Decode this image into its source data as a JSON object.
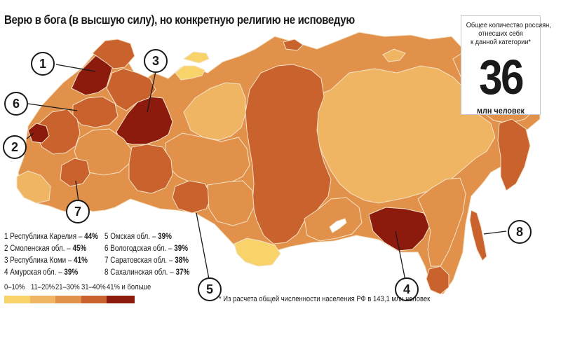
{
  "title": "Верю в бога (в высшую силу), но конкретную религию не исповедую",
  "callout": {
    "line1": "Общее количество россиян,",
    "line2": "отнесших себя",
    "line3": "к данной категории*",
    "number": "36",
    "unit": "млн человек"
  },
  "legend": [
    {
      "num": "1",
      "name": "1 Республика Карелия",
      "value": "44%"
    },
    {
      "num": "2",
      "name": "2 Смоленская обл.",
      "value": "45%"
    },
    {
      "num": "3",
      "name": "3 Республика Коми",
      "value": "41%"
    },
    {
      "num": "4",
      "name": "4 Амурская обл.",
      "value": "39%"
    },
    {
      "num": "5",
      "name": "5 Омская обл.",
      "value": "39%"
    },
    {
      "num": "6",
      "name": "6 Вологодская обл.",
      "value": "39%"
    },
    {
      "num": "7",
      "name": "7 Саратовская обл.",
      "value": "38%"
    },
    {
      "num": "8",
      "name": "8 Сахалинская обл.",
      "value": "37%"
    }
  ],
  "scale": [
    {
      "label": "0–10%",
      "color": "#f8d36a"
    },
    {
      "label": "11–20%",
      "color": "#f0b562"
    },
    {
      "label": "21–30%",
      "color": "#e2914b"
    },
    {
      "label": "31–40%",
      "color": "#c9622c"
    },
    {
      "label": "41% и больше",
      "color": "#8c1a0d"
    }
  ],
  "footnote": "* Из расчета общей численности населения РФ в 143,1 млн человек",
  "markers": [
    "1",
    "2",
    "3",
    "4",
    "5",
    "6",
    "7",
    "8"
  ],
  "colors": {
    "c1": "#f8d36a",
    "c2": "#f0b562",
    "c3": "#e2914b",
    "c4": "#c9622c",
    "c5": "#8c1a0d",
    "water": "#ffffff",
    "border": "#f3e3c8"
  }
}
